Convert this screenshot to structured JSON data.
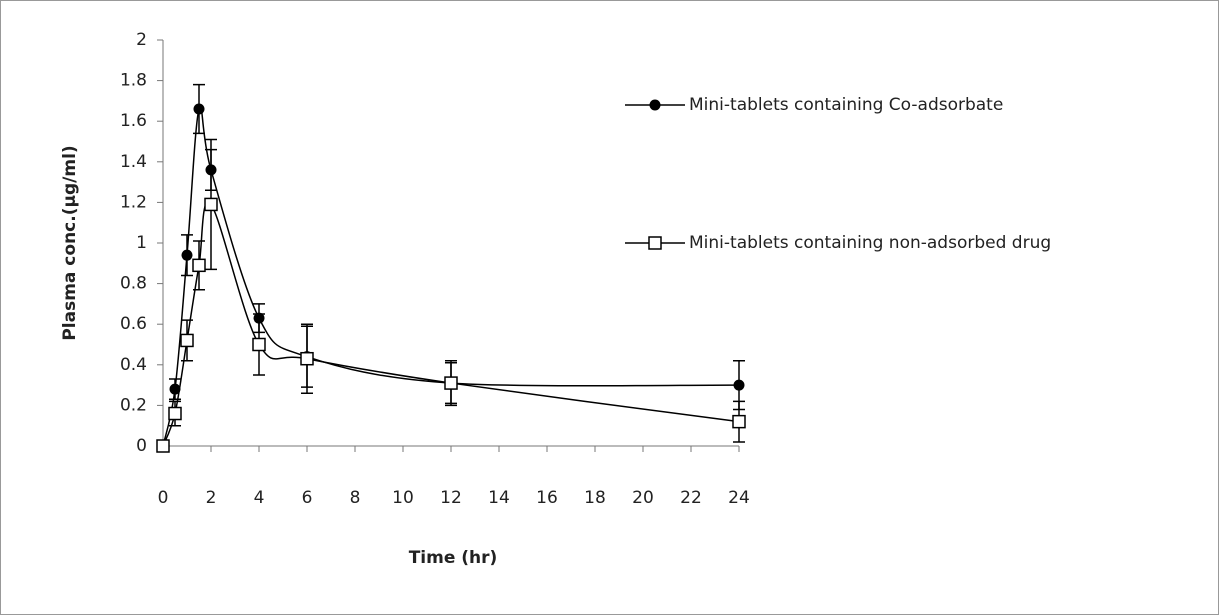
{
  "chart_data": {
    "type": "line",
    "x_label": "Time (hr)",
    "y_label": "Plasma conc.(µg/ml)",
    "x": [
      0,
      0.5,
      1,
      1.5,
      2,
      4,
      6,
      12,
      24
    ],
    "series": [
      {
        "name": "Mini-tablets containing Co-adsorbate",
        "color": "#000000",
        "marker": "filled-circle",
        "values": [
          0,
          0.28,
          0.94,
          1.66,
          1.36,
          0.63,
          0.44,
          0.31,
          0.3
        ],
        "errors": [
          0,
          0.05,
          0.1,
          0.12,
          0.1,
          0.07,
          0.15,
          0.11,
          0.12
        ]
      },
      {
        "name": "Mini-tablets containing non-adsorbed drug",
        "color": "#000000",
        "marker": "open-square",
        "values": [
          0,
          0.16,
          0.52,
          0.89,
          1.19,
          0.5,
          0.43,
          0.31,
          0.12
        ],
        "errors": [
          0,
          0.06,
          0.1,
          0.12,
          0.32,
          0.15,
          0.17,
          0.1,
          0.1
        ]
      }
    ],
    "xlim": [
      0,
      24
    ],
    "xticks": [
      0,
      2,
      4,
      6,
      8,
      10,
      12,
      14,
      16,
      18,
      20,
      22,
      24
    ],
    "ylim": [
      0,
      2
    ],
    "yticks": [
      0,
      0.2,
      0.4,
      0.6,
      0.8,
      1,
      1.2,
      1.4,
      1.6,
      1.8,
      2
    ],
    "grid": false,
    "smooth": true,
    "legend": "right"
  }
}
